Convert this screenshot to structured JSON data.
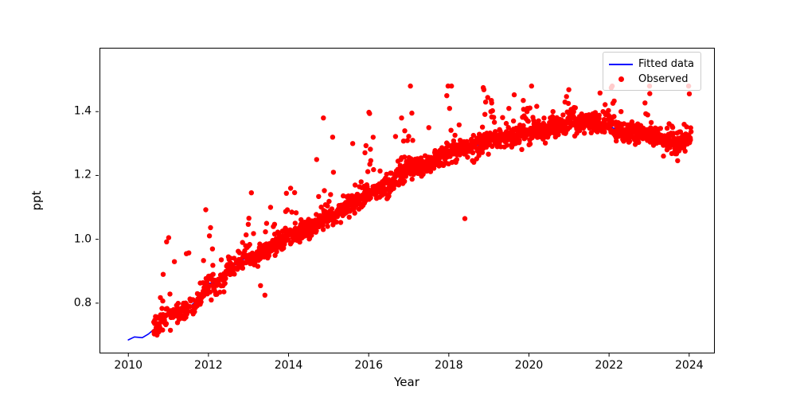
{
  "chart_data": {
    "type": "scatter",
    "title": "",
    "xlabel": "Year",
    "ylabel": "ppt",
    "grid": false,
    "background": "#ffffff",
    "frame_color": "#000000",
    "xlim": [
      2009.28,
      2024.62
    ],
    "ylim": [
      0.645,
      1.6
    ],
    "x_ticks": [
      2010,
      2012,
      2014,
      2016,
      2018,
      2020,
      2022,
      2024
    ],
    "x_tick_labels": [
      "2010",
      "2012",
      "2014",
      "2016",
      "2018",
      "2020",
      "2022",
      "2024"
    ],
    "y_ticks": [
      0.8,
      1.0,
      1.2,
      1.4
    ],
    "y_tick_labels": [
      "0.8",
      "1.0",
      "1.2",
      "1.4"
    ],
    "legend": {
      "position": "upper-right",
      "items": [
        {
          "label": "Fitted data",
          "type": "line",
          "color": "#0000ff"
        },
        {
          "label": "Observed",
          "type": "dot",
          "color": "#ff0000"
        }
      ]
    },
    "series": [
      {
        "name": "Fitted data",
        "type": "line",
        "color": "#0000ff",
        "line_width": 1.6,
        "points": [
          [
            2010.0,
            0.685
          ],
          [
            2010.15,
            0.694
          ],
          [
            2010.35,
            0.692
          ],
          [
            2010.5,
            0.703
          ],
          [
            2010.75,
            0.73
          ],
          [
            2011.0,
            0.762
          ],
          [
            2011.25,
            0.775
          ],
          [
            2011.5,
            0.783
          ],
          [
            2011.75,
            0.815
          ],
          [
            2012.0,
            0.862
          ],
          [
            2012.25,
            0.866
          ],
          [
            2012.5,
            0.9
          ],
          [
            2012.75,
            0.93
          ],
          [
            2013.0,
            0.945
          ],
          [
            2013.25,
            0.955
          ],
          [
            2013.5,
            0.965
          ],
          [
            2013.75,
            0.995
          ],
          [
            2014.0,
            1.01
          ],
          [
            2014.25,
            1.02
          ],
          [
            2014.5,
            1.032
          ],
          [
            2014.75,
            1.05
          ],
          [
            2015.0,
            1.072
          ],
          [
            2015.25,
            1.085
          ],
          [
            2015.5,
            1.1
          ],
          [
            2015.75,
            1.125
          ],
          [
            2016.0,
            1.152
          ],
          [
            2016.25,
            1.16
          ],
          [
            2016.5,
            1.163
          ],
          [
            2016.75,
            1.2
          ],
          [
            2017.0,
            1.222
          ],
          [
            2017.25,
            1.23
          ],
          [
            2017.5,
            1.238
          ],
          [
            2017.75,
            1.255
          ],
          [
            2018.0,
            1.27
          ],
          [
            2018.25,
            1.277
          ],
          [
            2018.5,
            1.283
          ],
          [
            2018.75,
            1.297
          ],
          [
            2019.0,
            1.312
          ],
          [
            2019.25,
            1.318
          ],
          [
            2019.5,
            1.32
          ],
          [
            2019.75,
            1.33
          ],
          [
            2020.0,
            1.338
          ],
          [
            2020.25,
            1.34
          ],
          [
            2020.5,
            1.345
          ],
          [
            2020.75,
            1.355
          ],
          [
            2021.0,
            1.362
          ],
          [
            2021.25,
            1.363
          ],
          [
            2021.5,
            1.362
          ],
          [
            2021.75,
            1.363
          ],
          [
            2022.0,
            1.355
          ],
          [
            2022.25,
            1.34
          ],
          [
            2022.5,
            1.33
          ],
          [
            2022.75,
            1.34
          ],
          [
            2023.0,
            1.33
          ],
          [
            2023.25,
            1.318
          ],
          [
            2023.5,
            1.308
          ],
          [
            2023.75,
            1.296
          ],
          [
            2024.0,
            1.308
          ]
        ]
      },
      {
        "name": "Observed",
        "type": "scatter",
        "color": "#ff0000",
        "marker_radius": 3.2,
        "model": {
          "seed": 20240131,
          "start": 2010.63,
          "end": 2024.05,
          "per_year": 140,
          "thin_before": 2013.0,
          "thin_keep": 0.72,
          "sigma": 0.016,
          "spike_prob_base": 0.07,
          "spike_prob_winter": 0.2,
          "spike_scale": 0.04,
          "spike_boost": 2.2,
          "spike_cap": 0.24,
          "clamp": [
            0.7,
            1.48
          ]
        },
        "outliers": [
          [
            2010.87,
            0.89
          ],
          [
            2011.05,
            0.715
          ],
          [
            2011.15,
            0.93
          ],
          [
            2011.45,
            0.955
          ],
          [
            2012.07,
            0.81
          ],
          [
            2012.1,
            0.97
          ],
          [
            2012.5,
            0.945
          ],
          [
            2012.85,
            0.99
          ],
          [
            2013.3,
            0.855
          ],
          [
            2013.41,
            0.825
          ],
          [
            2013.45,
            1.05
          ],
          [
            2013.55,
            1.1
          ],
          [
            2013.62,
            1.04
          ],
          [
            2014.05,
            1.16
          ],
          [
            2014.08,
            1.085
          ],
          [
            2014.7,
            1.25
          ],
          [
            2014.87,
            1.38
          ],
          [
            2015.1,
            1.32
          ],
          [
            2015.12,
            1.21
          ],
          [
            2015.6,
            1.3
          ],
          [
            2015.66,
            1.17
          ],
          [
            2016.82,
            1.38
          ],
          [
            2016.9,
            1.34
          ],
          [
            2017.1,
            1.31
          ],
          [
            2017.5,
            1.35
          ],
          [
            2017.95,
            1.45
          ],
          [
            2018.02,
            1.41
          ],
          [
            2018.4,
            1.065
          ],
          [
            2018.86,
            1.475
          ],
          [
            2018.92,
            1.43
          ],
          [
            2019.05,
            1.4
          ],
          [
            2019.5,
            1.41
          ],
          [
            2019.86,
            1.435
          ],
          [
            2019.96,
            1.41
          ],
          [
            2020.6,
            1.4
          ],
          [
            2020.9,
            1.43
          ],
          [
            2021.05,
            1.4
          ],
          [
            2021.5,
            1.39
          ],
          [
            2021.85,
            1.4
          ],
          [
            2022.3,
            1.4
          ]
        ]
      }
    ]
  }
}
